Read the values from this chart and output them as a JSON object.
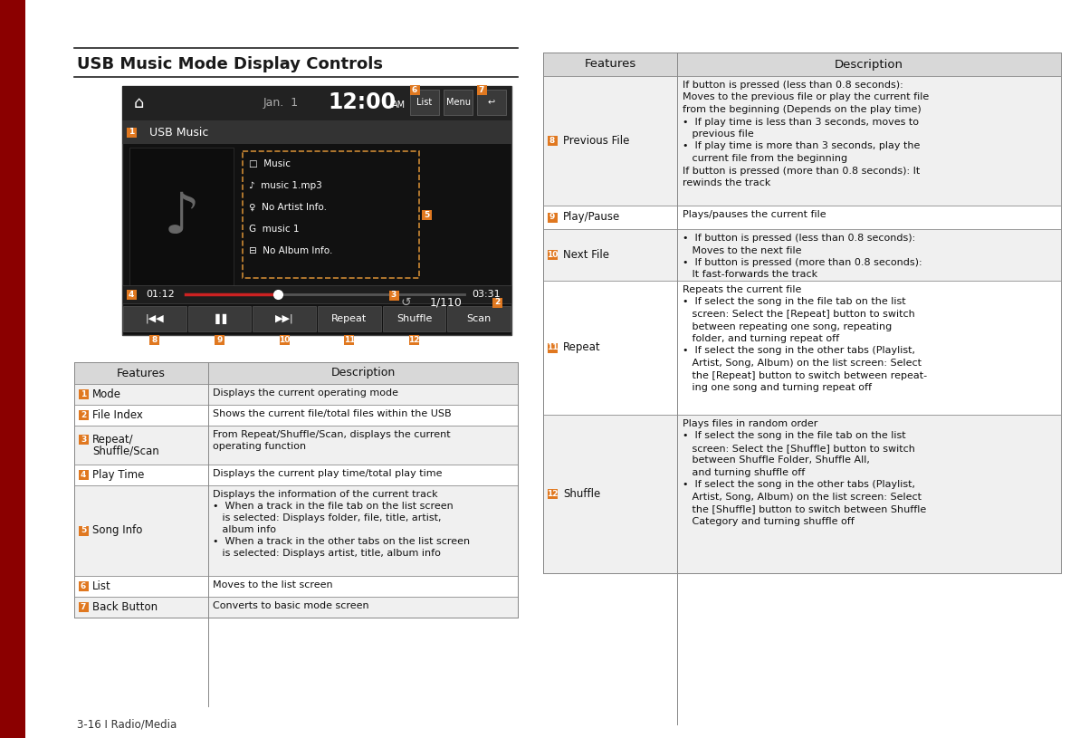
{
  "page_bg": "#ffffff",
  "sidebar_color": "#8b0000",
  "title": "USB Music Mode Display Controls",
  "footer_text": "3-16 I Radio/Media",
  "badge_color": "#e07820",
  "left_table": {
    "header_bg": "#d8d8d8",
    "row_bg_even": "#f0f0f0",
    "row_bg_odd": "#ffffff",
    "border_color": "#888888",
    "rows": [
      {
        "num": "1",
        "feature": "Mode",
        "desc_lines": [
          "Displays the current operating mode"
        ]
      },
      {
        "num": "2",
        "feature": "File Index",
        "desc_lines": [
          "Shows the current file/total files within the USB"
        ]
      },
      {
        "num": "3",
        "feature": "Repeat/\nShuffle/Scan",
        "desc_lines": [
          "From Repeat/Shuffle/Scan, displays the current",
          "operating function"
        ]
      },
      {
        "num": "4",
        "feature": "Play Time",
        "desc_lines": [
          "Displays the current play time/total play time"
        ]
      },
      {
        "num": "5",
        "feature": "Song Info",
        "desc_lines": [
          "Displays the information of the current track",
          "•  When a track in the file tab on the list screen",
          "   is selected: Displays folder, file, title, artist,",
          "   album info",
          "•  When a track in the other tabs on the list screen",
          "   is selected: Displays artist, title, album info"
        ]
      },
      {
        "num": "6",
        "feature": "List",
        "desc_lines": [
          "Moves to the list screen"
        ]
      },
      {
        "num": "7",
        "feature": "Back Button",
        "desc_lines": [
          "Converts to basic mode screen"
        ]
      }
    ]
  },
  "right_table": {
    "header_bg": "#d8d8d8",
    "row_bg_even": "#f0f0f0",
    "row_bg_odd": "#ffffff",
    "border_color": "#888888",
    "rows": [
      {
        "num": "8",
        "feature": "Previous File",
        "desc_lines": [
          "If button is pressed (less than 0.8 seconds):",
          "Moves to the previous file or play the current file",
          "from the beginning (Depends on the play time)",
          "•  If play time is less than 3 seconds, moves to",
          "   previous file",
          "•  If play time is more than 3 seconds, play the",
          "   current file from the beginning",
          "If button is pressed (more than 0.8 seconds): It",
          "rewinds the track"
        ]
      },
      {
        "num": "9",
        "feature": "Play/Pause",
        "desc_lines": [
          "Plays/pauses the current file"
        ]
      },
      {
        "num": "10",
        "feature": "Next File",
        "desc_lines": [
          "•  If button is pressed (less than 0.8 seconds):",
          "   Moves to the next file",
          "•  If button is pressed (more than 0.8 seconds):",
          "   It fast-forwards the track"
        ]
      },
      {
        "num": "11",
        "feature": "Repeat",
        "desc_lines": [
          "Repeats the current file",
          "•  If select the song in the file tab on the list",
          "   screen: Select the [Repeat] button to switch",
          "   between repeating one song, repeating",
          "   folder, and turning repeat off",
          "•  If select the song in the other tabs (Playlist,",
          "   Artist, Song, Album) on the list screen: Select",
          "   the [Repeat] button to switch between repeat-",
          "   ing one song and turning repeat off"
        ]
      },
      {
        "num": "12",
        "feature": "Shuffle",
        "desc_lines": [
          "Plays files in random order",
          "•  If select the song in the file tab on the list",
          "   screen: Select the [Shuffle] button to switch",
          "   between Shuffle Folder, Shuffle All,",
          "   and turning shuffle off",
          "•  If select the song in the other tabs (Playlist,",
          "   Artist, Song, Album) on the list screen: Select",
          "   the [Shuffle] button to switch between Shuffle",
          "   Category and turning shuffle off"
        ]
      }
    ]
  }
}
